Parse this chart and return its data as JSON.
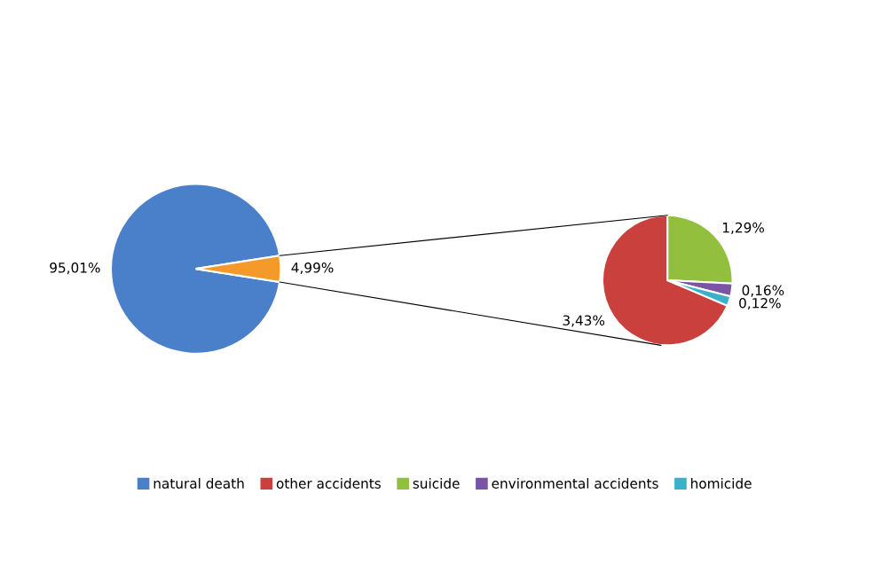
{
  "chart_data": [
    {
      "type": "pie",
      "categories": [
        "natural death",
        null
      ],
      "values": [
        95.01,
        4.99
      ],
      "colors": [
        "#4a7fc9",
        "#f39a2a"
      ],
      "value_labels": [
        "95,01%",
        "4,99%"
      ],
      "legend": "bottom"
    },
    {
      "type": "pie",
      "categories": [
        "other accidents",
        "suicide",
        "environmental accidents",
        "homicide"
      ],
      "values": [
        3.43,
        1.29,
        0.16,
        0.12
      ],
      "colors": [
        "#c9403c",
        "#92bf3e",
        "#7a55a6",
        "#3bb0c9"
      ],
      "value_labels": [
        "3,43%",
        "1,29%",
        "0,16%",
        "0,12%"
      ],
      "legend": "bottom"
    }
  ]
}
